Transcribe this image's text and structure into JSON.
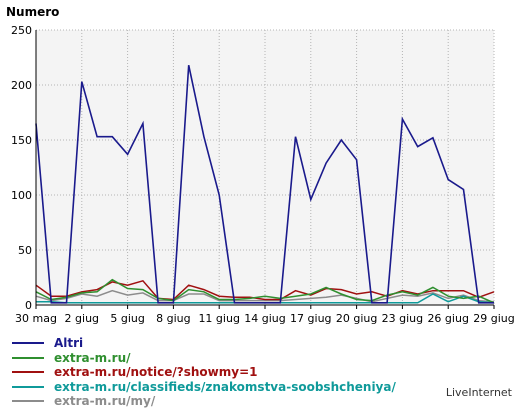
{
  "chart_data": {
    "type": "line",
    "ylabel": "Numero",
    "ylim": [
      0,
      250
    ],
    "yticks": [
      0,
      50,
      100,
      150,
      200,
      250
    ],
    "grid": true,
    "legend_position": "bottom-left",
    "x_tick_labels": [
      "30 mag",
      "2 giug",
      "5 giug",
      "8 giug",
      "11 giug",
      "14 giug",
      "17 giug",
      "20 giug",
      "23 giug",
      "26 giug",
      "29 giug"
    ],
    "x_tick_index": [
      0,
      3,
      6,
      9,
      12,
      15,
      18,
      21,
      24,
      27,
      30
    ],
    "n_points": 31,
    "series": [
      {
        "name": "Altri",
        "color": "#1a1a8c",
        "values": [
          165,
          2,
          2,
          203,
          153,
          153,
          137,
          165,
          2,
          2,
          218,
          153,
          100,
          2,
          2,
          2,
          2,
          153,
          96,
          129,
          150,
          132,
          2,
          2,
          169,
          144,
          152,
          114,
          105,
          2,
          2
        ]
      },
      {
        "name": "extra-m.ru/",
        "color": "#2f8f2f",
        "values": [
          12,
          5,
          7,
          11,
          12,
          23,
          15,
          14,
          6,
          4,
          14,
          12,
          5,
          5,
          6,
          8,
          6,
          8,
          10,
          16,
          10,
          5,
          4,
          9,
          12,
          9,
          16,
          8,
          6,
          8,
          2
        ]
      },
      {
        "name": "extra-m.ru/notice/?showmy=1",
        "color": "#a01010",
        "values": [
          18,
          8,
          8,
          12,
          14,
          21,
          18,
          22,
          6,
          5,
          18,
          14,
          8,
          7,
          7,
          5,
          5,
          13,
          9,
          15,
          14,
          10,
          12,
          8,
          13,
          10,
          13,
          13,
          13,
          7,
          12
        ]
      },
      {
        "name": "extra-m.ru/classifieds/znakomstva-soobshcheniya/",
        "color": "#0f9a9a",
        "values": [
          3,
          3,
          2,
          2,
          2,
          2,
          2,
          2,
          2,
          2,
          2,
          2,
          2,
          2,
          2,
          2,
          2,
          2,
          2,
          2,
          2,
          2,
          2,
          2,
          2,
          2,
          10,
          3,
          8,
          3,
          2
        ]
      },
      {
        "name": "extra-m.ru/my/",
        "color": "#8c8c8c",
        "values": [
          8,
          4,
          6,
          10,
          8,
          13,
          9,
          11,
          4,
          4,
          10,
          10,
          4,
          4,
          4,
          4,
          4,
          5,
          6,
          7,
          9,
          6,
          3,
          6,
          9,
          8,
          11,
          6,
          9,
          4,
          3
        ]
      }
    ]
  },
  "footer": {
    "credit": "LiveInternet"
  }
}
